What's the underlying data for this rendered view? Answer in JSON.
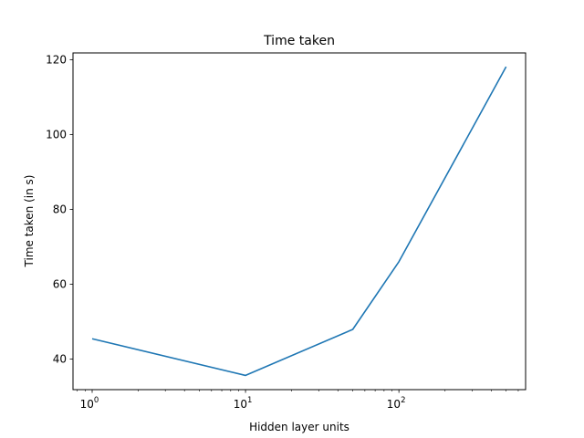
{
  "chart_data": {
    "type": "line",
    "title": "Time taken",
    "xlabel": "Hidden layer units",
    "ylabel": "Time taken (in s)",
    "x_scale": "log",
    "xlim": [
      0.75,
      670
    ],
    "ylim": [
      31.8,
      121.8
    ],
    "x_ticks": [
      {
        "value": 1,
        "base": "10",
        "exp": "0"
      },
      {
        "value": 10,
        "base": "10",
        "exp": "1"
      },
      {
        "value": 100,
        "base": "10",
        "exp": "2"
      }
    ],
    "y_ticks": [
      40,
      60,
      80,
      100,
      120
    ],
    "grid": false,
    "series": [
      {
        "color": "#1f77b4",
        "x": [
          1,
          10,
          50,
          100,
          500
        ],
        "y": [
          45.4,
          35.6,
          47.9,
          66.0,
          118.1
        ]
      }
    ]
  }
}
